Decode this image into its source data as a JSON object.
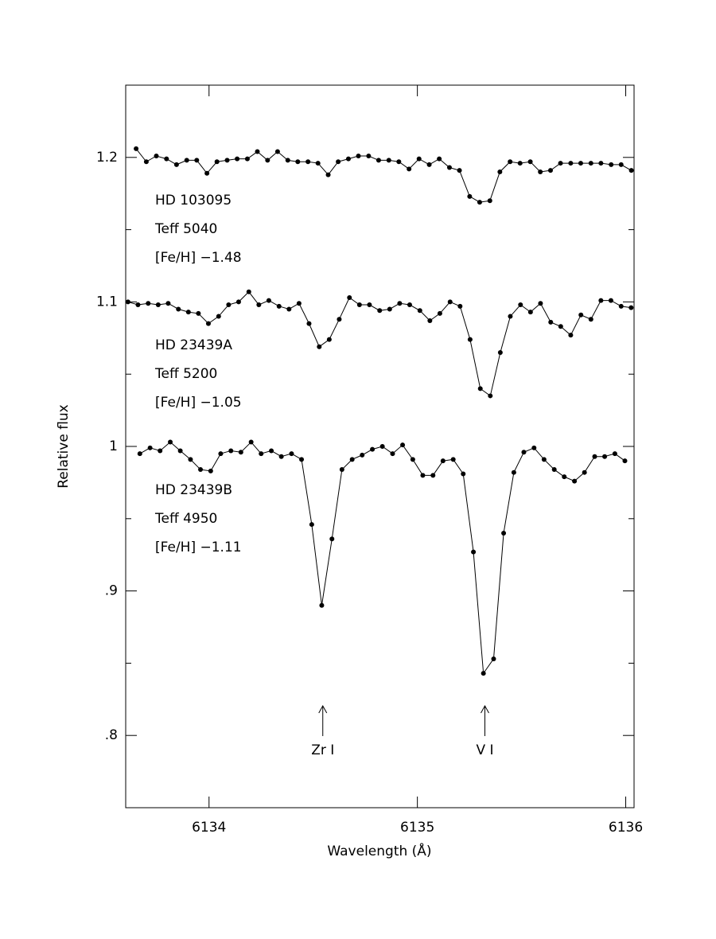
{
  "chart_data": {
    "type": "line-points",
    "x_label": "Wavelength (Å)",
    "y_label": "Relative flux",
    "xlim": [
      6133.6,
      6136.04
    ],
    "xticks": [
      6134,
      6135,
      6136
    ],
    "ylim": [
      0.75,
      1.25
    ],
    "yticks": [
      {
        "value": 0.8,
        "label": ".8"
      },
      {
        "value": 0.9,
        "label": ".9"
      },
      1,
      1.1,
      1.2
    ],
    "yminorticks": [
      0.85,
      0.95,
      1.05,
      1.15
    ],
    "color": "#000000",
    "series": [
      {
        "name": "HD 103095",
        "info": [
          "Teff 5040",
          "[Fe/H] −1.48"
        ],
        "x": [
          6133.65,
          6133.699,
          6133.747,
          6133.796,
          6133.844,
          6133.893,
          6133.941,
          6133.99,
          6134.038,
          6134.087,
          6134.135,
          6134.184,
          6134.232,
          6134.281,
          6134.329,
          6134.378,
          6134.426,
          6134.475,
          6134.523,
          6134.572,
          6134.62,
          6134.669,
          6134.717,
          6134.766,
          6134.814,
          6134.863,
          6134.911,
          6134.96,
          6135.008,
          6135.057,
          6135.105,
          6135.154,
          6135.202,
          6135.251,
          6135.299,
          6135.348,
          6135.396,
          6135.445,
          6135.493,
          6135.542,
          6135.59,
          6135.639,
          6135.687,
          6135.736,
          6135.784,
          6135.833,
          6135.881,
          6135.93,
          6135.978,
          6136.027
        ],
        "values": [
          1.206,
          1.197,
          1.201,
          1.199,
          1.195,
          1.198,
          1.198,
          1.189,
          1.197,
          1.198,
          1.199,
          1.199,
          1.204,
          1.198,
          1.204,
          1.198,
          1.197,
          1.197,
          1.196,
          1.188,
          1.197,
          1.199,
          1.201,
          1.201,
          1.198,
          1.198,
          1.197,
          1.192,
          1.199,
          1.195,
          1.199,
          1.193,
          1.191,
          1.173,
          1.169,
          1.17,
          1.19,
          1.197,
          1.196,
          1.197,
          1.19,
          1.191,
          1.196,
          1.196,
          1.196,
          1.196,
          1.196,
          1.195,
          1.195,
          1.191
        ]
      },
      {
        "name": "HD 23439A",
        "info": [
          "Teff 5200",
          "[Fe/H] −1.05"
        ],
        "x": [
          6133.611,
          6133.659,
          6133.708,
          6133.756,
          6133.804,
          6133.853,
          6133.901,
          6133.949,
          6133.997,
          6134.046,
          6134.094,
          6134.142,
          6134.191,
          6134.239,
          6134.287,
          6134.336,
          6134.384,
          6134.432,
          6134.48,
          6134.529,
          6134.577,
          6134.625,
          6134.674,
          6134.722,
          6134.77,
          6134.819,
          6134.867,
          6134.915,
          6134.963,
          6135.012,
          6135.06,
          6135.108,
          6135.157,
          6135.205,
          6135.253,
          6135.302,
          6135.35,
          6135.398,
          6135.446,
          6135.495,
          6135.543,
          6135.591,
          6135.64,
          6135.688,
          6135.736,
          6135.785,
          6135.833,
          6135.881,
          6135.929,
          6135.978,
          6136.026
        ],
        "values": [
          1.1,
          1.098,
          1.099,
          1.098,
          1.099,
          1.095,
          1.093,
          1.092,
          1.085,
          1.09,
          1.098,
          1.1,
          1.107,
          1.098,
          1.101,
          1.097,
          1.095,
          1.099,
          1.085,
          1.069,
          1.074,
          1.088,
          1.103,
          1.098,
          1.098,
          1.094,
          1.095,
          1.099,
          1.098,
          1.094,
          1.087,
          1.092,
          1.1,
          1.097,
          1.074,
          1.04,
          1.035,
          1.065,
          1.09,
          1.098,
          1.093,
          1.099,
          1.086,
          1.083,
          1.077,
          1.091,
          1.088,
          1.101,
          1.101,
          1.097,
          1.096
        ]
      },
      {
        "name": "HD 23439B",
        "info": [
          "Teff 4950",
          "[Fe/H] −1.11"
        ],
        "x": [
          6133.668,
          6133.717,
          6133.765,
          6133.814,
          6133.862,
          6133.911,
          6133.959,
          6134.008,
          6134.056,
          6134.105,
          6134.153,
          6134.202,
          6134.25,
          6134.299,
          6134.347,
          6134.396,
          6134.444,
          6134.493,
          6134.541,
          6134.59,
          6134.638,
          6134.687,
          6134.735,
          6134.784,
          6134.832,
          6134.881,
          6134.929,
          6134.978,
          6135.026,
          6135.075,
          6135.123,
          6135.172,
          6135.22,
          6135.269,
          6135.317,
          6135.366,
          6135.414,
          6135.463,
          6135.511,
          6135.56,
          6135.608,
          6135.657,
          6135.705,
          6135.754,
          6135.802,
          6135.851,
          6135.899,
          6135.948,
          6135.996
        ],
        "values": [
          0.995,
          0.999,
          0.997,
          1.003,
          0.997,
          0.991,
          0.984,
          0.983,
          0.995,
          0.997,
          0.996,
          1.003,
          0.995,
          0.997,
          0.993,
          0.995,
          0.991,
          0.946,
          0.89,
          0.936,
          0.984,
          0.991,
          0.994,
          0.998,
          1.0,
          0.995,
          1.001,
          0.991,
          0.98,
          0.98,
          0.99,
          0.991,
          0.981,
          0.927,
          0.843,
          0.853,
          0.94,
          0.982,
          0.996,
          0.999,
          0.991,
          0.984,
          0.979,
          0.976,
          0.982,
          0.993,
          0.993,
          0.995,
          0.99
        ]
      }
    ],
    "line_ids": [
      {
        "label": "Zr I",
        "x": 6134.546
      },
      {
        "label": "V I",
        "x": 6135.324
      }
    ]
  }
}
